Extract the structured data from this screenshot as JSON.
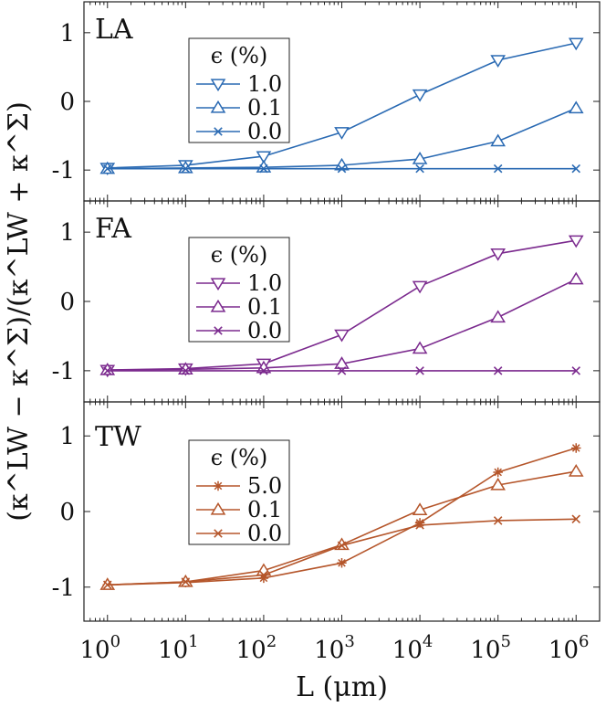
{
  "chart_data": {
    "type": "line",
    "xlabel": "L (μm)",
    "ylabel": "(κ^LW − κ^Σ)/(κ^LW + κ^Σ)",
    "x_scale": "log",
    "x": [
      1,
      10,
      100,
      1000,
      10000,
      100000,
      1000000
    ],
    "x_tick_labels": [
      {
        "base": "10",
        "exp": "0"
      },
      {
        "base": "10",
        "exp": "1"
      },
      {
        "base": "10",
        "exp": "2"
      },
      {
        "base": "10",
        "exp": "3"
      },
      {
        "base": "10",
        "exp": "4"
      },
      {
        "base": "10",
        "exp": "5"
      },
      {
        "base": "10",
        "exp": "6"
      }
    ],
    "xlim": [
      0.5,
      2000000
    ],
    "ylim": [
      -1.45,
      1.45
    ],
    "y_ticks": [
      1,
      0,
      -1
    ],
    "y_tick_labels": [
      "1",
      "0",
      "-1"
    ],
    "legend_title": "ϵ (%)",
    "legend_position": "upper-left",
    "panels": [
      {
        "label": "LA",
        "color": "#2a6ab3",
        "series": [
          {
            "name": "1.0",
            "marker": "triangle-down",
            "values": [
              -0.97,
              -0.93,
              -0.8,
              -0.45,
              0.1,
              0.6,
              0.85
            ]
          },
          {
            "name": "0.1",
            "marker": "triangle-up",
            "values": [
              -0.98,
              -0.97,
              -0.96,
              -0.93,
              -0.84,
              -0.58,
              -0.1
            ]
          },
          {
            "name": "0.0",
            "marker": "x",
            "values": [
              -0.98,
              -0.98,
              -0.98,
              -0.98,
              -0.98,
              -0.98,
              -0.98
            ]
          }
        ]
      },
      {
        "label": "FA",
        "color": "#7b2a8e",
        "series": [
          {
            "name": "1.0",
            "marker": "triangle-down",
            "values": [
              -0.99,
              -0.97,
              -0.9,
              -0.48,
              0.22,
              0.69,
              0.88
            ]
          },
          {
            "name": "0.1",
            "marker": "triangle-up",
            "values": [
              -0.99,
              -0.98,
              -0.96,
              -0.9,
              -0.68,
              -0.23,
              0.32
            ]
          },
          {
            "name": "0.0",
            "marker": "x",
            "values": [
              -1.0,
              -1.0,
              -1.0,
              -1.0,
              -1.0,
              -1.0,
              -1.0
            ]
          }
        ]
      },
      {
        "label": "TW",
        "color": "#b5562b",
        "series": [
          {
            "name": "5.0",
            "marker": "star",
            "values": [
              -0.97,
              -0.94,
              -0.88,
              -0.68,
              -0.15,
              0.52,
              0.84
            ]
          },
          {
            "name": "0.1",
            "marker": "triangle-up",
            "values": [
              -0.97,
              -0.93,
              -0.78,
              -0.44,
              0.02,
              0.35,
              0.53
            ]
          },
          {
            "name": "0.0",
            "marker": "x",
            "values": [
              -0.97,
              -0.93,
              -0.84,
              -0.45,
              -0.18,
              -0.12,
              -0.1
            ]
          }
        ]
      }
    ]
  }
}
